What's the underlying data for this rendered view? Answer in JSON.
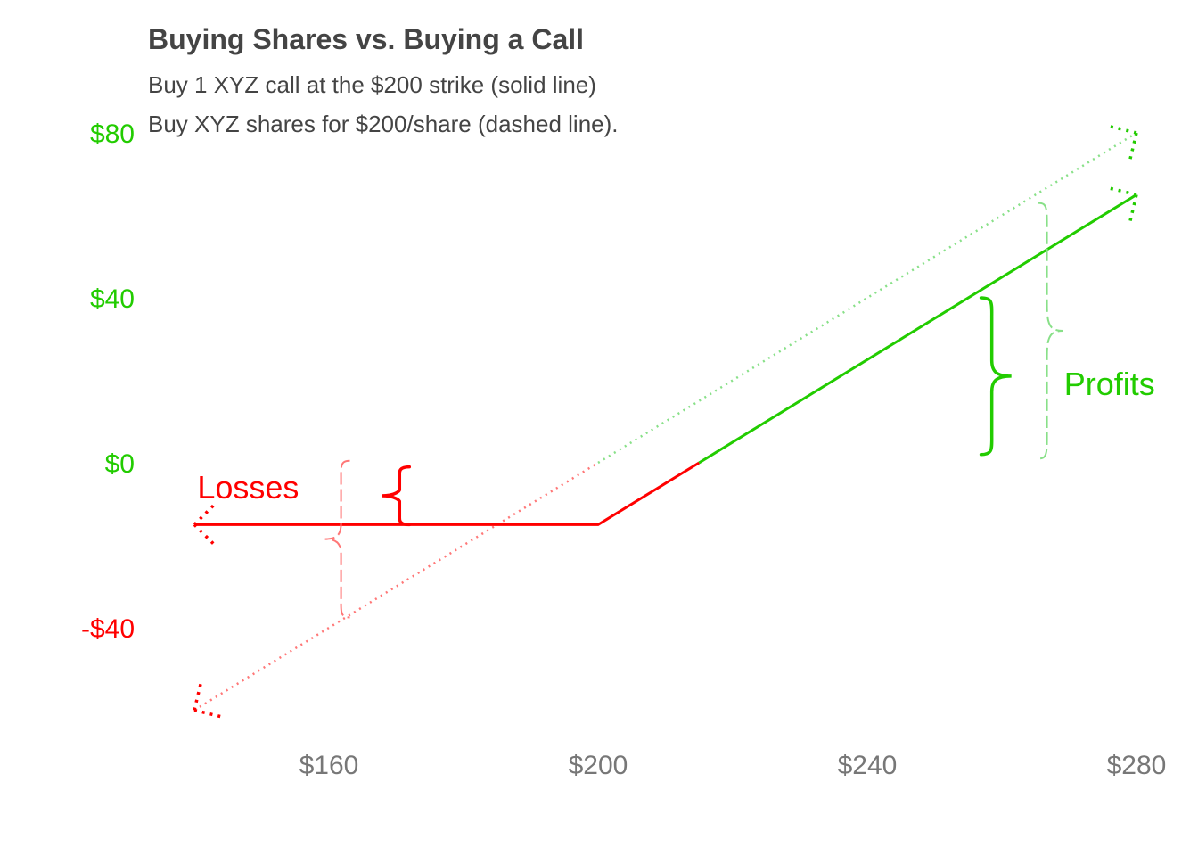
{
  "chart_data": {
    "type": "line",
    "title": "Buying Shares vs. Buying a Call",
    "subtitle_lines": [
      "Buy 1 XYZ call at the $200 strike (solid line)",
      "Buy XYZ shares for $200/share (dashed line)."
    ],
    "xlabel": "",
    "ylabel": "",
    "x_ticks": [
      {
        "value": 160,
        "label": "$160"
      },
      {
        "value": 200,
        "label": "$200"
      },
      {
        "value": 240,
        "label": "$240"
      },
      {
        "value": 280,
        "label": "$280"
      }
    ],
    "y_ticks": [
      {
        "value": 80,
        "label": "$80"
      },
      {
        "value": 40,
        "label": "$40"
      },
      {
        "value": 0,
        "label": "$0"
      },
      {
        "value": -40,
        "label": "-$40"
      }
    ],
    "xlim": [
      133,
      285
    ],
    "ylim": [
      -66,
      95
    ],
    "grid": false,
    "series": [
      {
        "style": "solid",
        "x": [
          140,
          200,
          280
        ],
        "y": [
          -15,
          -15,
          65
        ]
      },
      {
        "style": "dotted",
        "x": [
          140,
          280
        ],
        "y": [
          -60,
          80
        ]
      }
    ],
    "breakeven": {
      "shares": 200,
      "call": 215
    },
    "annotations": [
      {
        "text": "Losses",
        "x": 148,
        "y": -6
      },
      {
        "text": "Profits",
        "x": 276,
        "y": 19
      }
    ],
    "colors": {
      "loss": "#ff0000",
      "profit": "#22cc00",
      "loss_light": "#ff7777",
      "profit_light": "#88e088",
      "tick_x": "#777777",
      "title": "#444444"
    }
  }
}
